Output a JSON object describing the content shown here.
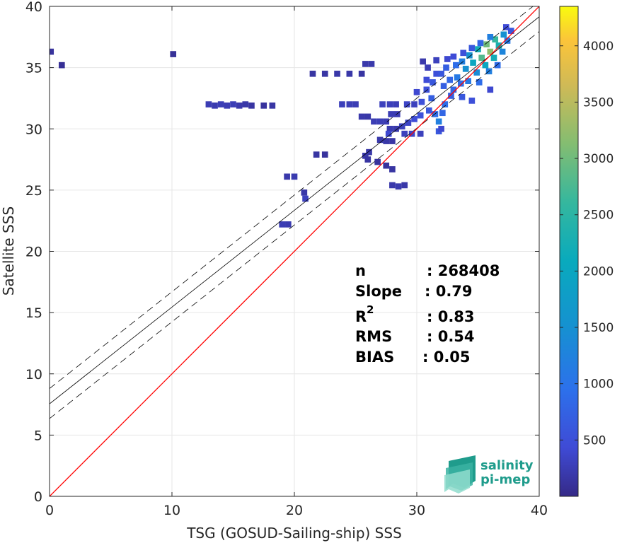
{
  "chart_data": {
    "type": "heatmap",
    "title": "",
    "xlabel": "TSG (GOSUD-Sailing-ship) SSS",
    "ylabel": "Satellite SSS",
    "xlim": [
      0,
      40
    ],
    "ylim": [
      0,
      40
    ],
    "xticks": [
      "0",
      "10",
      "20",
      "30",
      "40"
    ],
    "yticks": [
      "0",
      "5",
      "10",
      "15",
      "20",
      "25",
      "30",
      "35",
      "40"
    ],
    "grid": true,
    "colorbar": {
      "range": [
        0,
        4350
      ],
      "ticks": [
        "500",
        "1000",
        "1500",
        "2000",
        "2500",
        "3000",
        "3500",
        "4000"
      ],
      "colormap": "parula"
    },
    "stats": {
      "n_label": "n",
      "n_value": ": 268408",
      "slope_label": "Slope",
      "slope_value": ": 0.79",
      "r2_label": "R",
      "r2_sup": "2",
      "r2_value": ": 0.83",
      "rms_label": "RMS",
      "rms_value": ": 0.54",
      "bias_label": "BIAS",
      "bias_value": ": 0.05"
    },
    "lines": {
      "identity": {
        "slope": 1,
        "intercept": 0,
        "color": "#ff0000"
      },
      "fit": {
        "slope": 0.79,
        "intercept": 7.55,
        "color": "#000000"
      },
      "fit_upper": {
        "slope": 0.79,
        "intercept": 8.8,
        "color": "#000000",
        "style": "dashed"
      },
      "fit_lower": {
        "slope": 0.79,
        "intercept": 6.35,
        "color": "#000000",
        "style": "dashed"
      }
    },
    "density_cells": [
      [
        0.1,
        36.3,
        120
      ],
      [
        1.0,
        35.2,
        80
      ],
      [
        10.1,
        36.1,
        90
      ],
      [
        13.0,
        32.0,
        250
      ],
      [
        13.5,
        31.9,
        220
      ],
      [
        14.0,
        32.0,
        260
      ],
      [
        14.5,
        31.9,
        240
      ],
      [
        15.0,
        32.0,
        260
      ],
      [
        15.5,
        31.9,
        200
      ],
      [
        16.0,
        32.0,
        180
      ],
      [
        16.5,
        31.9,
        150
      ],
      [
        17.5,
        31.9,
        120
      ],
      [
        18.2,
        31.9,
        160
      ],
      [
        19.0,
        22.2,
        250
      ],
      [
        19.5,
        22.2,
        220
      ],
      [
        19.4,
        26.1,
        200
      ],
      [
        20.0,
        26.1,
        220
      ],
      [
        20.8,
        24.8,
        180
      ],
      [
        20.9,
        24.3,
        300
      ],
      [
        21.5,
        34.5,
        150
      ],
      [
        22.5,
        34.5,
        160
      ],
      [
        23.5,
        34.5,
        180
      ],
      [
        24.5,
        34.5,
        180
      ],
      [
        25.5,
        34.5,
        150
      ],
      [
        25.8,
        35.3,
        200
      ],
      [
        26.3,
        35.3,
        200
      ],
      [
        21.8,
        27.9,
        150
      ],
      [
        22.5,
        27.9,
        120
      ],
      [
        23.9,
        32.0,
        280
      ],
      [
        24.5,
        32.0,
        260
      ],
      [
        25.0,
        32.0,
        250
      ],
      [
        25.8,
        27.8,
        200
      ],
      [
        26.1,
        28.1,
        180
      ],
      [
        26.0,
        27.5,
        150
      ],
      [
        26.8,
        27.3,
        120
      ],
      [
        27.5,
        27.0,
        120
      ],
      [
        26.5,
        30.6,
        250
      ],
      [
        27.0,
        30.6,
        260
      ],
      [
        27.5,
        30.6,
        240
      ],
      [
        25.5,
        31.0,
        200
      ],
      [
        26.0,
        31.0,
        180
      ],
      [
        27.0,
        29.1,
        200
      ],
      [
        27.5,
        29.0,
        180
      ],
      [
        28.0,
        29.0,
        160
      ],
      [
        27.2,
        32.0,
        300
      ],
      [
        27.8,
        32.0,
        280
      ],
      [
        28.3,
        32.0,
        260
      ],
      [
        27.9,
        31.2,
        250
      ],
      [
        28.4,
        31.2,
        240
      ],
      [
        27.8,
        30.0,
        220
      ],
      [
        28.3,
        30.0,
        200
      ],
      [
        28.8,
        30.2,
        300
      ],
      [
        28.0,
        26.7,
        150
      ],
      [
        27.7,
        29.6,
        400
      ],
      [
        29.0,
        29.6,
        300
      ],
      [
        29.6,
        29.6,
        350
      ],
      [
        30.3,
        29.6,
        300
      ],
      [
        28.0,
        25.4,
        200
      ],
      [
        28.5,
        25.3,
        220
      ],
      [
        29.0,
        25.4,
        180
      ],
      [
        29.3,
        30.5,
        350
      ],
      [
        29.8,
        30.8,
        450
      ],
      [
        30.3,
        31.1,
        500
      ],
      [
        29.2,
        32.0,
        350
      ],
      [
        29.8,
        32.0,
        300
      ],
      [
        30.4,
        32.2,
        500
      ],
      [
        30.0,
        33.0,
        400
      ],
      [
        30.8,
        33.2,
        500
      ],
      [
        31.2,
        32.5,
        700
      ],
      [
        30.8,
        34.0,
        450
      ],
      [
        31.3,
        33.8,
        600
      ],
      [
        31.6,
        34.5,
        500
      ],
      [
        31.0,
        31.5,
        600
      ],
      [
        31.5,
        31.2,
        900
      ],
      [
        31.8,
        30.6,
        1200
      ],
      [
        31.8,
        29.8,
        600
      ],
      [
        32.0,
        30.0,
        400
      ],
      [
        32.1,
        31.3,
        800
      ],
      [
        32.3,
        32.0,
        900
      ],
      [
        32.2,
        33.5,
        700
      ],
      [
        32.0,
        34.5,
        600
      ],
      [
        32.4,
        35.0,
        700
      ],
      [
        32.7,
        34.0,
        800
      ],
      [
        32.8,
        32.7,
        700
      ],
      [
        33.0,
        33.2,
        800
      ],
      [
        33.2,
        35.2,
        900
      ],
      [
        33.3,
        34.2,
        1100
      ],
      [
        33.6,
        33.7,
        900
      ],
      [
        33.7,
        32.6,
        600
      ],
      [
        33.7,
        35.5,
        1200
      ],
      [
        34.0,
        34.9,
        1500
      ],
      [
        34.2,
        33.9,
        1100
      ],
      [
        34.5,
        32.3,
        500
      ],
      [
        34.3,
        36.0,
        1500
      ],
      [
        34.6,
        35.4,
        2000
      ],
      [
        34.9,
        34.6,
        1400
      ],
      [
        35.1,
        33.8,
        900
      ],
      [
        35.0,
        36.5,
        2200
      ],
      [
        35.3,
        35.8,
        2800
      ],
      [
        35.6,
        35.2,
        2000
      ],
      [
        35.9,
        34.7,
        1200
      ],
      [
        36.0,
        33.2,
        400
      ],
      [
        35.7,
        36.9,
        3000
      ],
      [
        36.0,
        36.3,
        3200
      ],
      [
        36.3,
        35.8,
        2200
      ],
      [
        36.6,
        35.2,
        900
      ],
      [
        36.4,
        37.3,
        2600
      ],
      [
        36.7,
        36.8,
        2300
      ],
      [
        37.0,
        36.3,
        1300
      ],
      [
        37.1,
        37.7,
        1500
      ],
      [
        37.4,
        37.2,
        1100
      ],
      [
        37.7,
        38.0,
        600
      ],
      [
        37.3,
        38.3,
        450
      ],
      [
        36.0,
        37.5,
        1200
      ],
      [
        35.2,
        37.0,
        800
      ],
      [
        34.5,
        36.6,
        600
      ],
      [
        33.8,
        36.2,
        500
      ],
      [
        33.0,
        35.9,
        450
      ],
      [
        32.5,
        35.7,
        400
      ],
      [
        31.6,
        35.6,
        300
      ],
      [
        30.9,
        35.0,
        250
      ],
      [
        30.5,
        35.5,
        200
      ]
    ]
  }
}
